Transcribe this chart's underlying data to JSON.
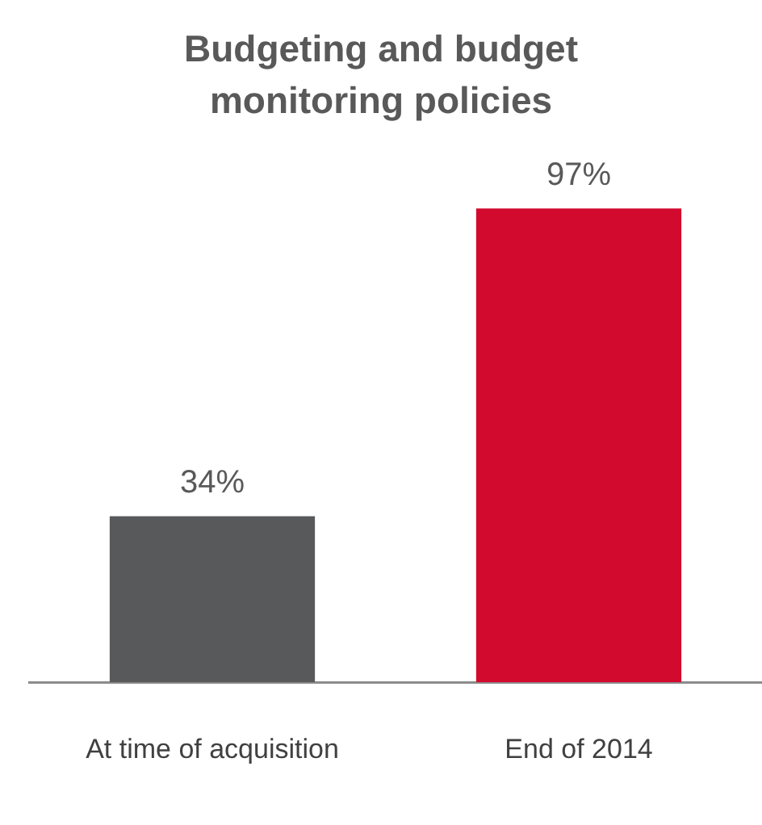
{
  "chart_data": {
    "type": "bar",
    "title": "Budgeting and budget monitoring policies",
    "categories": [
      "At time of acquisition",
      "End of 2014"
    ],
    "values": [
      34,
      97
    ],
    "value_labels": [
      "34%",
      "97%"
    ],
    "colors": [
      "#58595b",
      "#d20a2e"
    ],
    "grid": false,
    "legend": false
  }
}
